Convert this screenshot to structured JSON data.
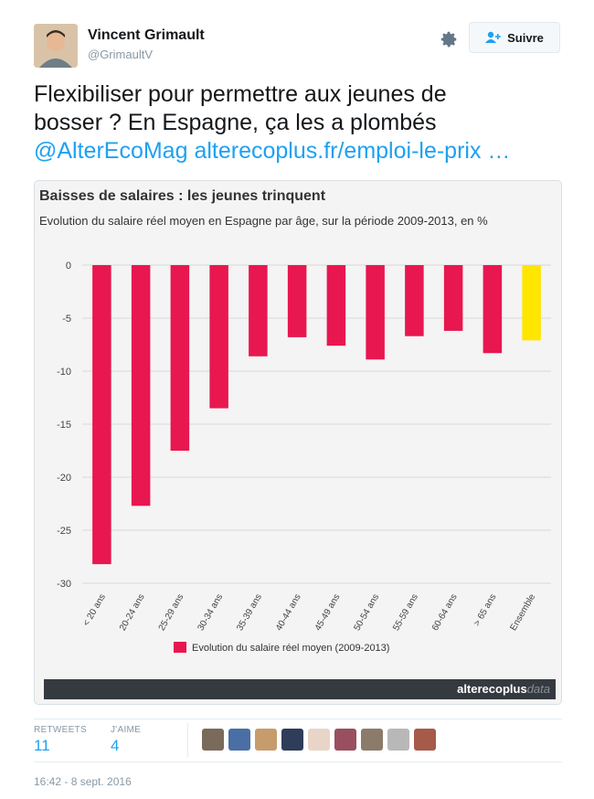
{
  "user": {
    "name": "Vincent Grimault",
    "handle": "@GrimaultV",
    "follow_label": "Suivre"
  },
  "tweet": {
    "text_line1": "Flexibiliser pour permettre aux jeunes de",
    "text_line2": "bosser ? En Espagne, ça les a plombés",
    "mention": "@AlterEcoMag",
    "link": "alterecoplus.fr/emploi-le-prix …"
  },
  "chart_header": {
    "title": "Baisses de salaires : les jeunes trinquent",
    "subtitle": "Evolution du salaire réel moyen en Espagne par âge, sur la période 2009-2013, en %"
  },
  "chart_data": {
    "type": "bar",
    "title": "Baisses de salaires : les jeunes trinquent",
    "subtitle": "Evolution du salaire réel moyen en Espagne par âge, sur la période 2009-2013, en %",
    "categories": [
      "< 20 ans",
      "20-24 ans",
      "25-29 ans",
      "30-34 ans",
      "35-39 ans",
      "40-44 ans",
      "45-49 ans",
      "50-54 ans",
      "55-59 ans",
      "60-64 ans",
      "> 65 ans",
      "Ensemble"
    ],
    "series": [
      {
        "name": "Evolution du salaire réel moyen (2009-2013)",
        "values": [
          -28.2,
          -22.7,
          -17.5,
          -13.5,
          -8.6,
          -6.8,
          -7.6,
          -8.9,
          -6.7,
          -6.2,
          -8.3,
          -7.1
        ]
      }
    ],
    "ylim": [
      -30,
      0
    ],
    "yticks": [
      "0",
      "-5",
      "-10",
      "-15",
      "-20",
      "-25",
      "-30"
    ],
    "grid": true,
    "legend_position": "bottom",
    "colors": {
      "bar": "#e8174f",
      "highlight": "#ffe600",
      "grid": "#d9d9d9"
    },
    "highlight_category": "Ensemble"
  },
  "brand": {
    "bold": "alterecoplus",
    "light": "data"
  },
  "stats": {
    "retweets_label": "RETWEETS",
    "retweets_value": "11",
    "likes_label": "J'AIME",
    "likes_value": "4",
    "face_colors": [
      "#7a6a5c",
      "#4a6fa5",
      "#c69c6d",
      "#2f3c5a",
      "#e8d5c8",
      "#9a4f5f",
      "#8c7b6a",
      "#b8b8b8",
      "#a65a4a"
    ]
  },
  "timestamp": "16:42 - 8 sept. 2016"
}
